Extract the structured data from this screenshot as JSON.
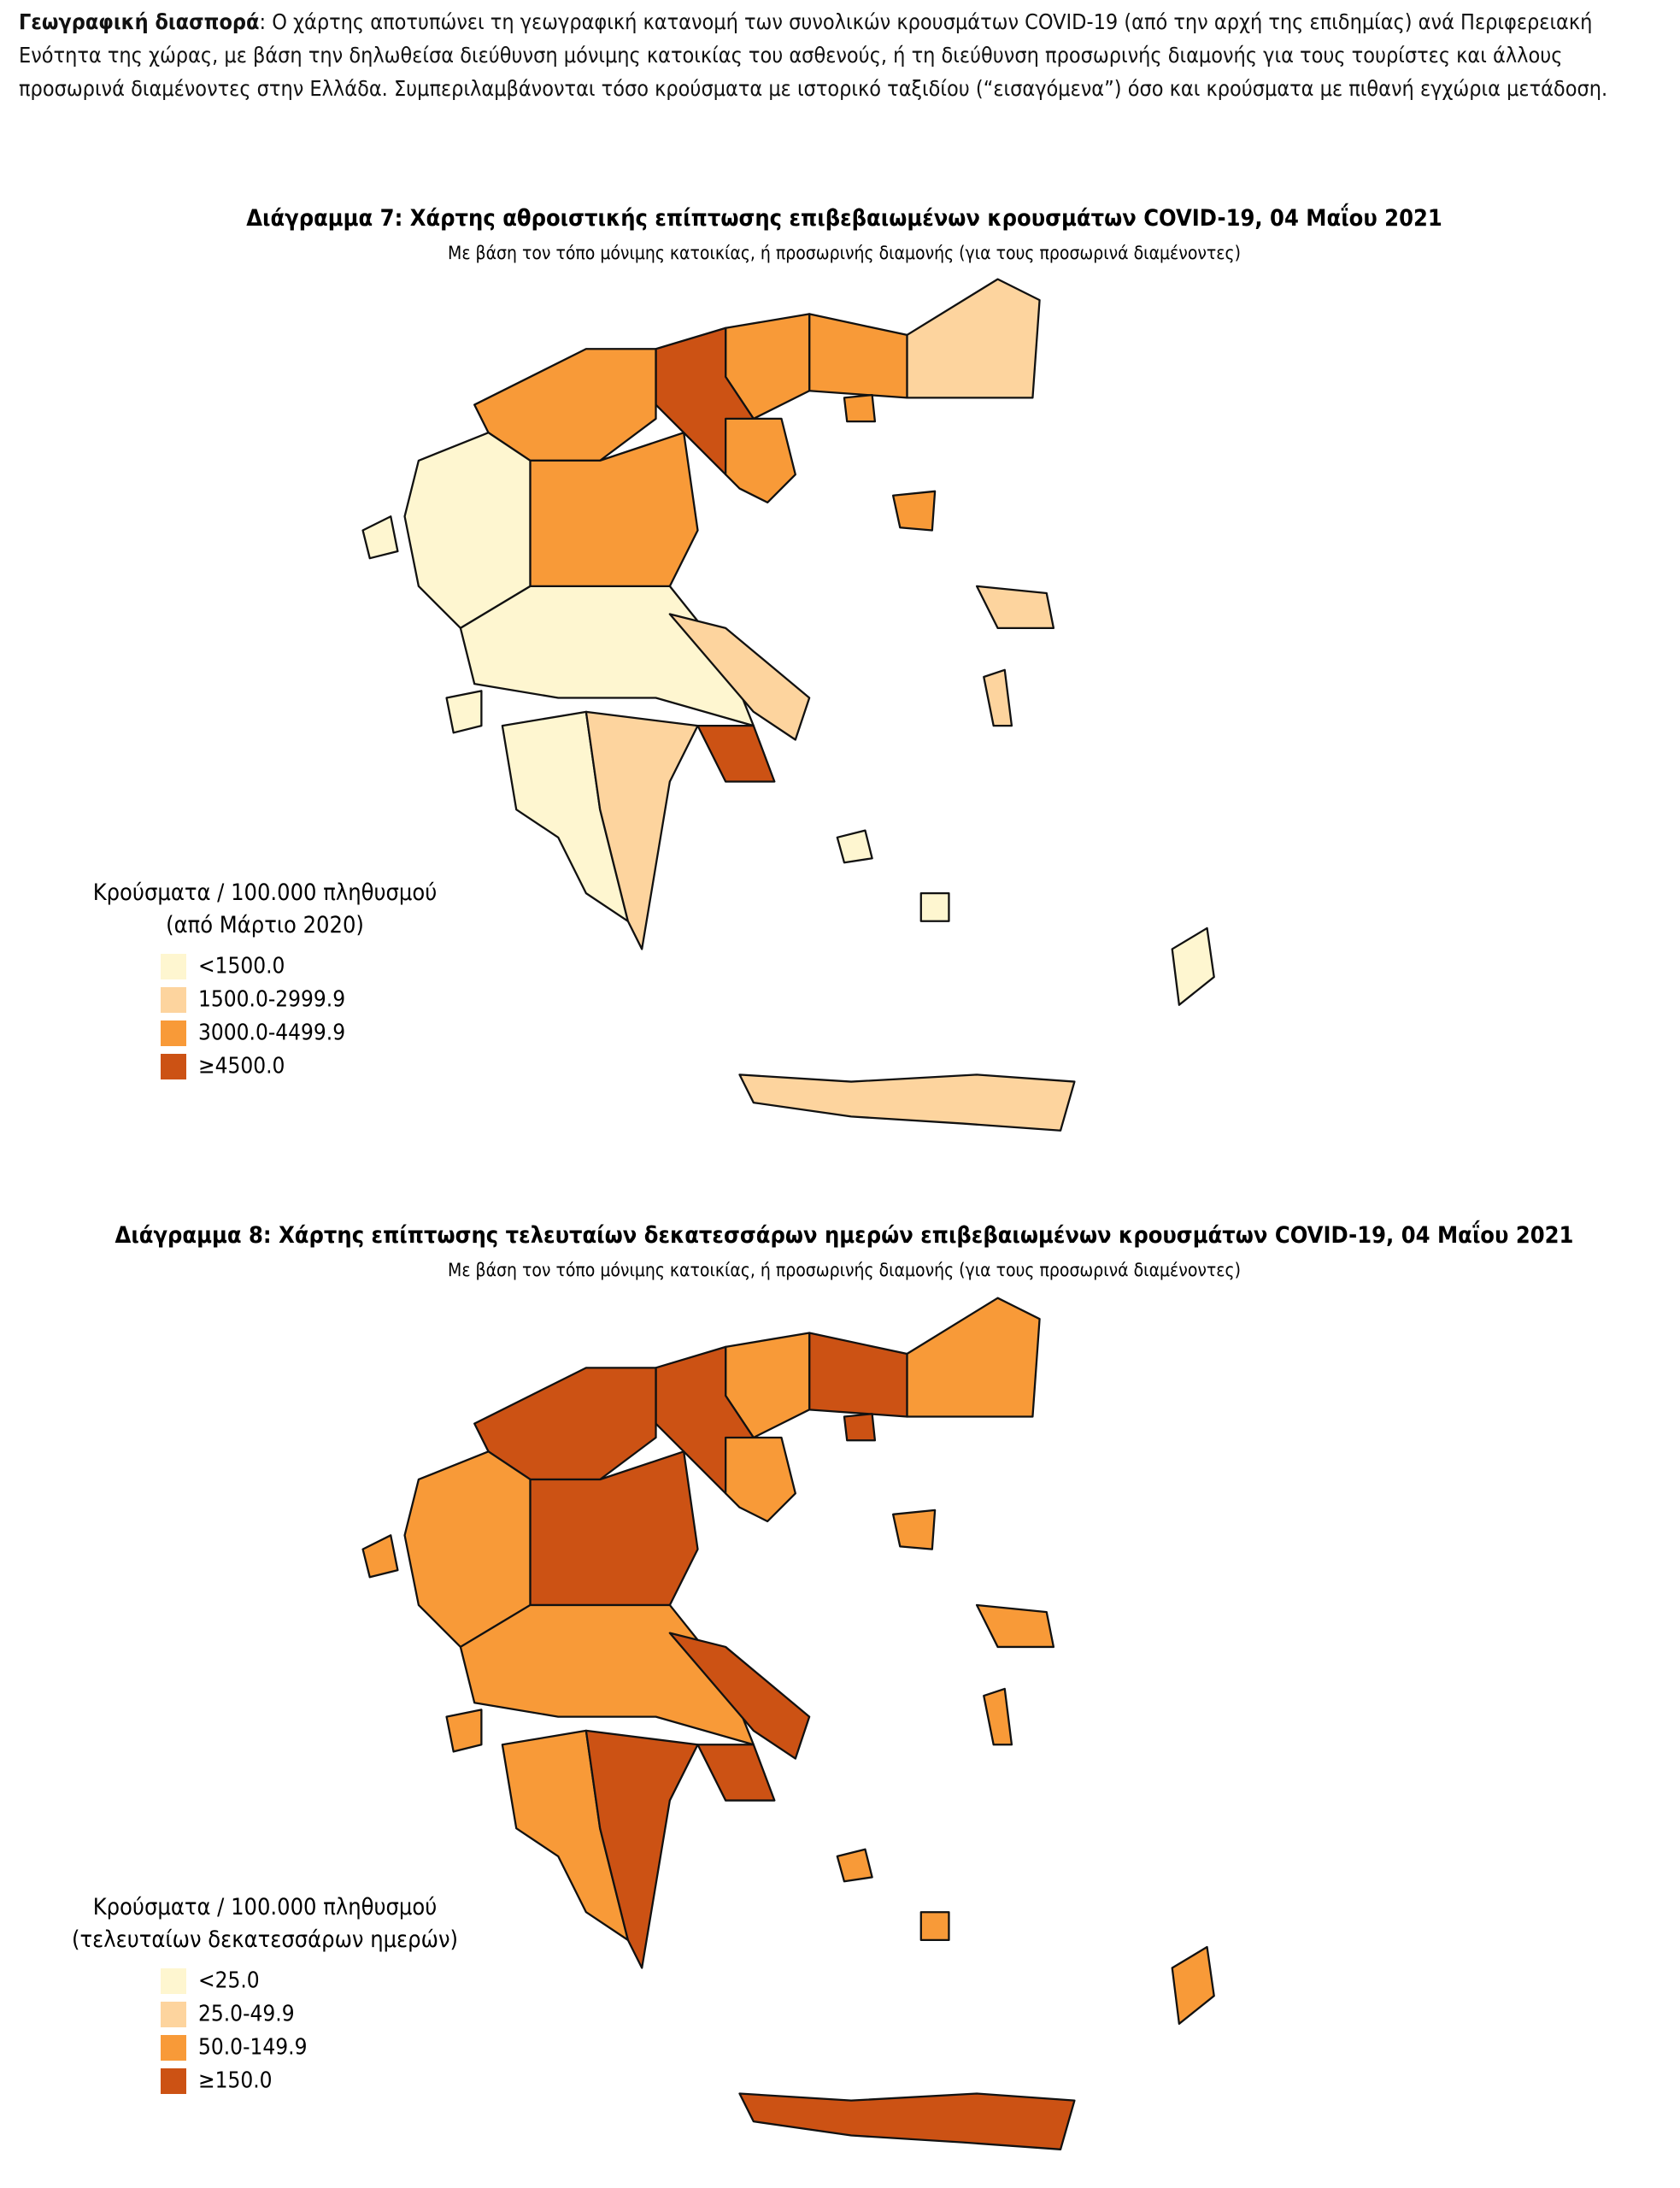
{
  "paragraph": {
    "lead": "Γεωγραφική διασπορά",
    "text": ": Ο χάρτης αποτυπώνει τη γεωγραφική κατανομή των συνολικών κρουσμάτων COVID-19 (από την αρχή της επιδημίας) ανά Περιφερειακή Ενότητα της χώρας, με βάση την δηλωθείσα διεύθυνση μόνιμης κατοικίας του ασθενούς, ή τη διεύθυνση προσωρινής διαμονής για τους τουρίστες και άλλους προσωρινά διαμένοντες στην Ελλάδα. Συμπεριλαμβάνονται τόσο κρούσματα με ιστορικό ταξιδίου (“εισαγόμενα”) όσο και κρούσματα με πιθανή εγχώρια μετάδοση."
  },
  "maps": [
    {
      "title": "Διάγραμμα 7: Χάρτης αθροιστικής επίπτωσης επιβεβαιωμένων κρουσμάτων COVID-19, 04 Μαΐου 2021",
      "subtitle": "Με βάση τον τόπο μόνιμης κατοικίας, ή προσωρινής διαμονής (για τους προσωρινά διαμένοντες)",
      "legend_title": [
        "Κρούσματα / 100.000 πληθυσμού",
        "(από Μάρτιο 2020)"
      ],
      "legend": [
        {
          "label": "<1500.0",
          "color": "#fef6d0"
        },
        {
          "label": "1500.0-2999.9",
          "color": "#fdd49e"
        },
        {
          "label": "3000.0-4499.9",
          "color": "#f89a38"
        },
        {
          "label": "≥4500.0",
          "color": "#cc5214"
        }
      ]
    },
    {
      "title": "Διάγραμμα 8: Χάρτης επίπτωσης τελευταίων δεκατεσσάρων ημερών επιβεβαιωμένων κρουσμάτων COVID-19, 04 Μαΐου 2021",
      "subtitle": "Με βάση τον τόπο μόνιμης κατοικίας, ή προσωρινής διαμονής (για τους προσωρινά διαμένοντες)",
      "legend_title": [
        "Κρούσματα / 100.000 πληθυσμού",
        "(τελευταίων δεκατεσσάρων ημερών)"
      ],
      "legend": [
        {
          "label": "<25.0",
          "color": "#fef6d0"
        },
        {
          "label": "25.0-49.9",
          "color": "#fdd49e"
        },
        {
          "label": "50.0-149.9",
          "color": "#f89a38"
        },
        {
          "label": "≥150.0",
          "color": "#cc5214"
        }
      ]
    }
  ]
}
